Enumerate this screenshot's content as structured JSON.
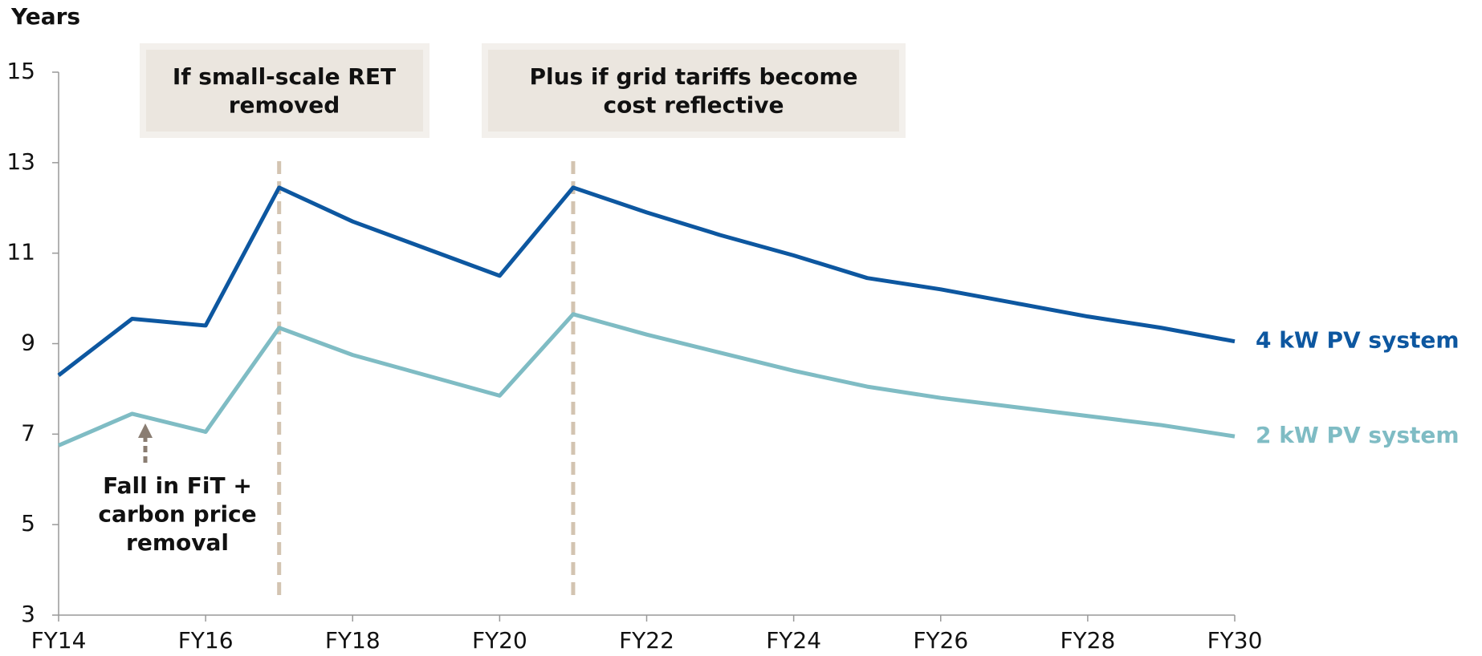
{
  "chart_data": {
    "type": "line",
    "y_axis_label": "Years",
    "categories": [
      "FY14",
      null,
      "FY16",
      null,
      "FY18",
      null,
      "FY20",
      null,
      "FY22",
      null,
      "FY24",
      null,
      "FY26",
      null,
      "FY28",
      null,
      "FY30"
    ],
    "series": [
      {
        "name": "4 kW PV system",
        "color": "#0d57a0",
        "values": [
          8.3,
          9.55,
          9.4,
          12.45,
          11.7,
          11.1,
          10.5,
          12.45,
          11.9,
          11.4,
          10.95,
          10.45,
          10.2,
          9.9,
          9.6,
          9.35,
          9.05
        ]
      },
      {
        "name": "2 kW PV system",
        "color": "#7fbcc4",
        "values": [
          6.75,
          7.45,
          7.05,
          9.35,
          8.75,
          8.3,
          7.85,
          9.65,
          9.2,
          8.8,
          8.4,
          8.05,
          7.8,
          7.6,
          7.4,
          7.2,
          6.95
        ]
      }
    ],
    "ylim": [
      3,
      15
    ],
    "yticks": [
      3,
      5,
      7,
      9,
      11,
      13,
      15
    ],
    "annotations": [
      [
        "If small-scale RET",
        "removed"
      ],
      [
        "Plus if grid tariffs become",
        "cost reflective"
      ],
      [
        "Fall in FiT +",
        "carbon price",
        "removal"
      ]
    ]
  }
}
